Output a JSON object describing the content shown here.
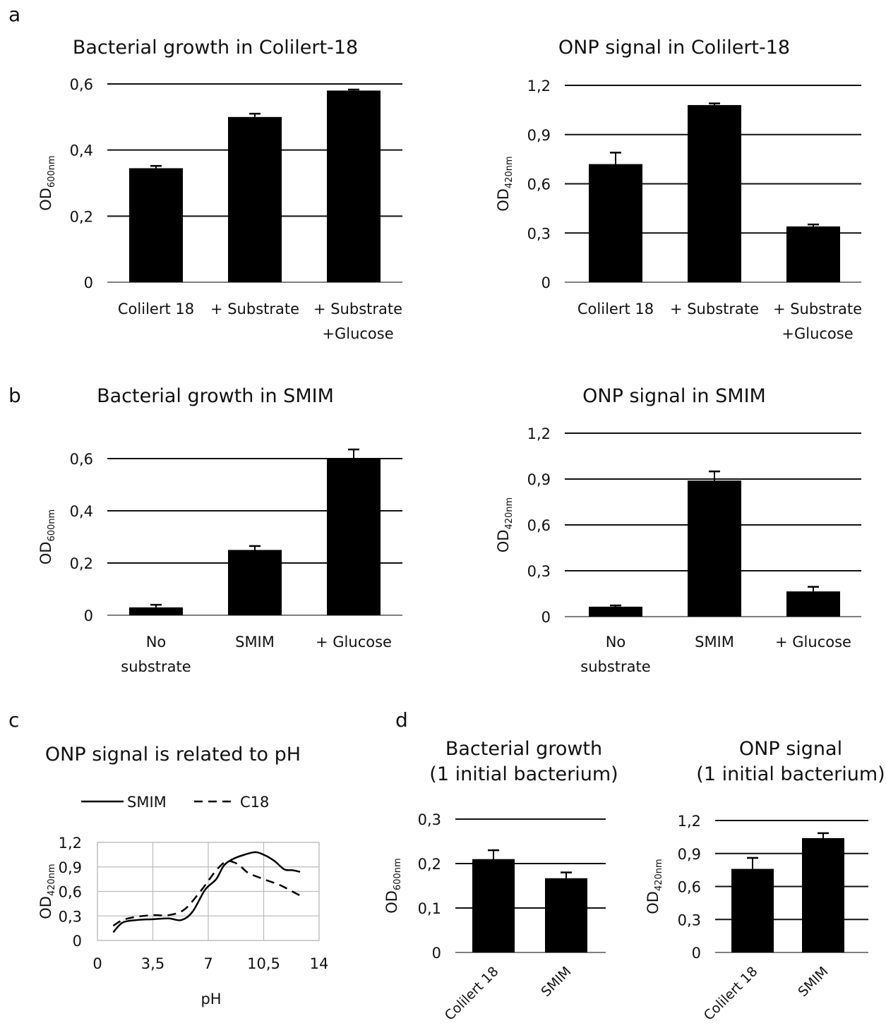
{
  "panels": {
    "a": "a",
    "b": "b",
    "c": "c",
    "d": "d"
  },
  "chart_data": [
    {
      "id": "a1",
      "type": "bar",
      "title": "Bacterial growth in Colilert-18",
      "ylabel_main": "OD",
      "ylabel_sub": "600nm",
      "ylim": [
        0,
        0.6
      ],
      "yticks": [
        "0",
        "0,2",
        "0,4",
        "0,6"
      ],
      "ytick_values": [
        0,
        0.2,
        0.4,
        0.6
      ],
      "categories": [
        [
          "Colilert 18"
        ],
        [
          "+ Substrate"
        ],
        [
          "+ Substrate",
          "+Glucose"
        ]
      ],
      "values": [
        0.345,
        0.5,
        0.58
      ],
      "errors": [
        0.007,
        0.01,
        0.003
      ],
      "grid": true
    },
    {
      "id": "a2",
      "type": "bar",
      "title": "ONP signal in Colilert-18",
      "ylabel_main": "OD",
      "ylabel_sub": "420nm",
      "ylim": [
        0,
        1.2
      ],
      "yticks": [
        "0",
        "0,3",
        "0,6",
        "0,9",
        "1,2"
      ],
      "ytick_values": [
        0,
        0.3,
        0.6,
        0.9,
        1.2
      ],
      "categories": [
        [
          "Colilert 18"
        ],
        [
          "+ Substrate"
        ],
        [
          "+ Substrate",
          "+Glucose"
        ]
      ],
      "values": [
        0.72,
        1.08,
        0.34
      ],
      "errors": [
        0.07,
        0.01,
        0.012
      ],
      "grid": true
    },
    {
      "id": "b1",
      "type": "bar",
      "title": "Bacterial growth in SMIM",
      "ylabel_main": "OD",
      "ylabel_sub": "600nm",
      "ylim": [
        0,
        0.7
      ],
      "yticks": [
        "0",
        "0,2",
        "0,4",
        "0,6"
      ],
      "ytick_values": [
        0,
        0.2,
        0.4,
        0.6
      ],
      "categories": [
        [
          "No",
          "substrate"
        ],
        [
          "SMIM"
        ],
        [
          "+ Glucose"
        ]
      ],
      "values": [
        0.03,
        0.25,
        0.6
      ],
      "errors": [
        0.01,
        0.015,
        0.035
      ],
      "grid": true
    },
    {
      "id": "b2",
      "type": "bar",
      "title": "ONP signal in SMIM",
      "ylabel_main": "OD",
      "ylabel_sub": "420nm",
      "ylim": [
        0,
        1.2
      ],
      "yticks": [
        "0",
        "0,3",
        "0,6",
        "0,9",
        "1,2"
      ],
      "ytick_values": [
        0,
        0.3,
        0.6,
        0.9,
        1.2
      ],
      "categories": [
        [
          "No",
          "substrate"
        ],
        [
          "SMIM"
        ],
        [
          "+ Glucose"
        ]
      ],
      "values": [
        0.065,
        0.89,
        0.165
      ],
      "errors": [
        0.008,
        0.06,
        0.03
      ],
      "grid": true
    },
    {
      "id": "c",
      "type": "line",
      "title": "ONP signal  is related to pH",
      "xlabel": "pH",
      "ylabel_main": "OD",
      "ylabel_sub": "420nm",
      "xlim": [
        0,
        14
      ],
      "ylim": [
        0,
        1.2
      ],
      "xticks": [
        "0",
        "3,5",
        "7",
        "10,5",
        "14"
      ],
      "xtick_values": [
        0,
        3.5,
        7,
        10.5,
        14
      ],
      "yticks": [
        "0",
        "0,3",
        "0,6",
        "0,9",
        "1,2"
      ],
      "ytick_values": [
        0,
        0.3,
        0.6,
        0.9,
        1.2
      ],
      "legend_position": "top",
      "grid": true,
      "series": [
        {
          "name": "SMIM",
          "dash": "solid",
          "x": [
            1.0,
            1.6,
            2.5,
            3.5,
            4.5,
            5.3,
            6.0,
            6.8,
            7.5,
            8.0,
            8.6,
            9.3,
            10.0,
            10.6,
            11.2,
            11.8,
            12.3,
            12.8
          ],
          "y": [
            0.1,
            0.22,
            0.25,
            0.26,
            0.27,
            0.25,
            0.35,
            0.62,
            0.75,
            0.92,
            1.0,
            1.05,
            1.08,
            1.04,
            0.97,
            0.87,
            0.86,
            0.84
          ]
        },
        {
          "name": "C18",
          "dash": "dashed",
          "x": [
            1.0,
            1.6,
            2.5,
            3.5,
            4.5,
            5.5,
            6.5,
            7.0,
            7.6,
            8.2,
            8.9,
            9.5,
            10.5,
            11.5,
            12.3,
            12.8
          ],
          "y": [
            0.18,
            0.25,
            0.29,
            0.31,
            0.31,
            0.38,
            0.6,
            0.73,
            0.88,
            0.97,
            0.93,
            0.83,
            0.75,
            0.68,
            0.6,
            0.55
          ]
        }
      ]
    },
    {
      "id": "d1",
      "type": "bar",
      "title_lines": [
        "Bacterial growth",
        "(1 initial bacterium)"
      ],
      "ylabel_main": "OD",
      "ylabel_sub": "600nm",
      "ylim": [
        0,
        0.3
      ],
      "yticks": [
        "0",
        "0,1",
        "0,2",
        "0,3"
      ],
      "ytick_values": [
        0,
        0.1,
        0.2,
        0.3
      ],
      "categories": [
        [
          "Colilert 18"
        ],
        [
          "SMIM"
        ]
      ],
      "values": [
        0.21,
        0.167
      ],
      "errors": [
        0.02,
        0.013
      ],
      "grid": true,
      "rotated_labels": true
    },
    {
      "id": "d2",
      "type": "bar",
      "title_lines": [
        "ONP signal",
        "(1 initial bacterium)"
      ],
      "ylabel_main": "OD",
      "ylabel_sub": "420nm",
      "ylim": [
        0,
        1.2
      ],
      "yticks": [
        "0",
        "0,3",
        "0,6",
        "0,9",
        "1,2"
      ],
      "ytick_values": [
        0,
        0.3,
        0.6,
        0.9,
        1.2
      ],
      "categories": [
        [
          "Colilert 18"
        ],
        [
          "SMIM"
        ]
      ],
      "values": [
        0.76,
        1.04
      ],
      "errors": [
        0.1,
        0.045
      ],
      "grid": true,
      "rotated_labels": true
    }
  ]
}
